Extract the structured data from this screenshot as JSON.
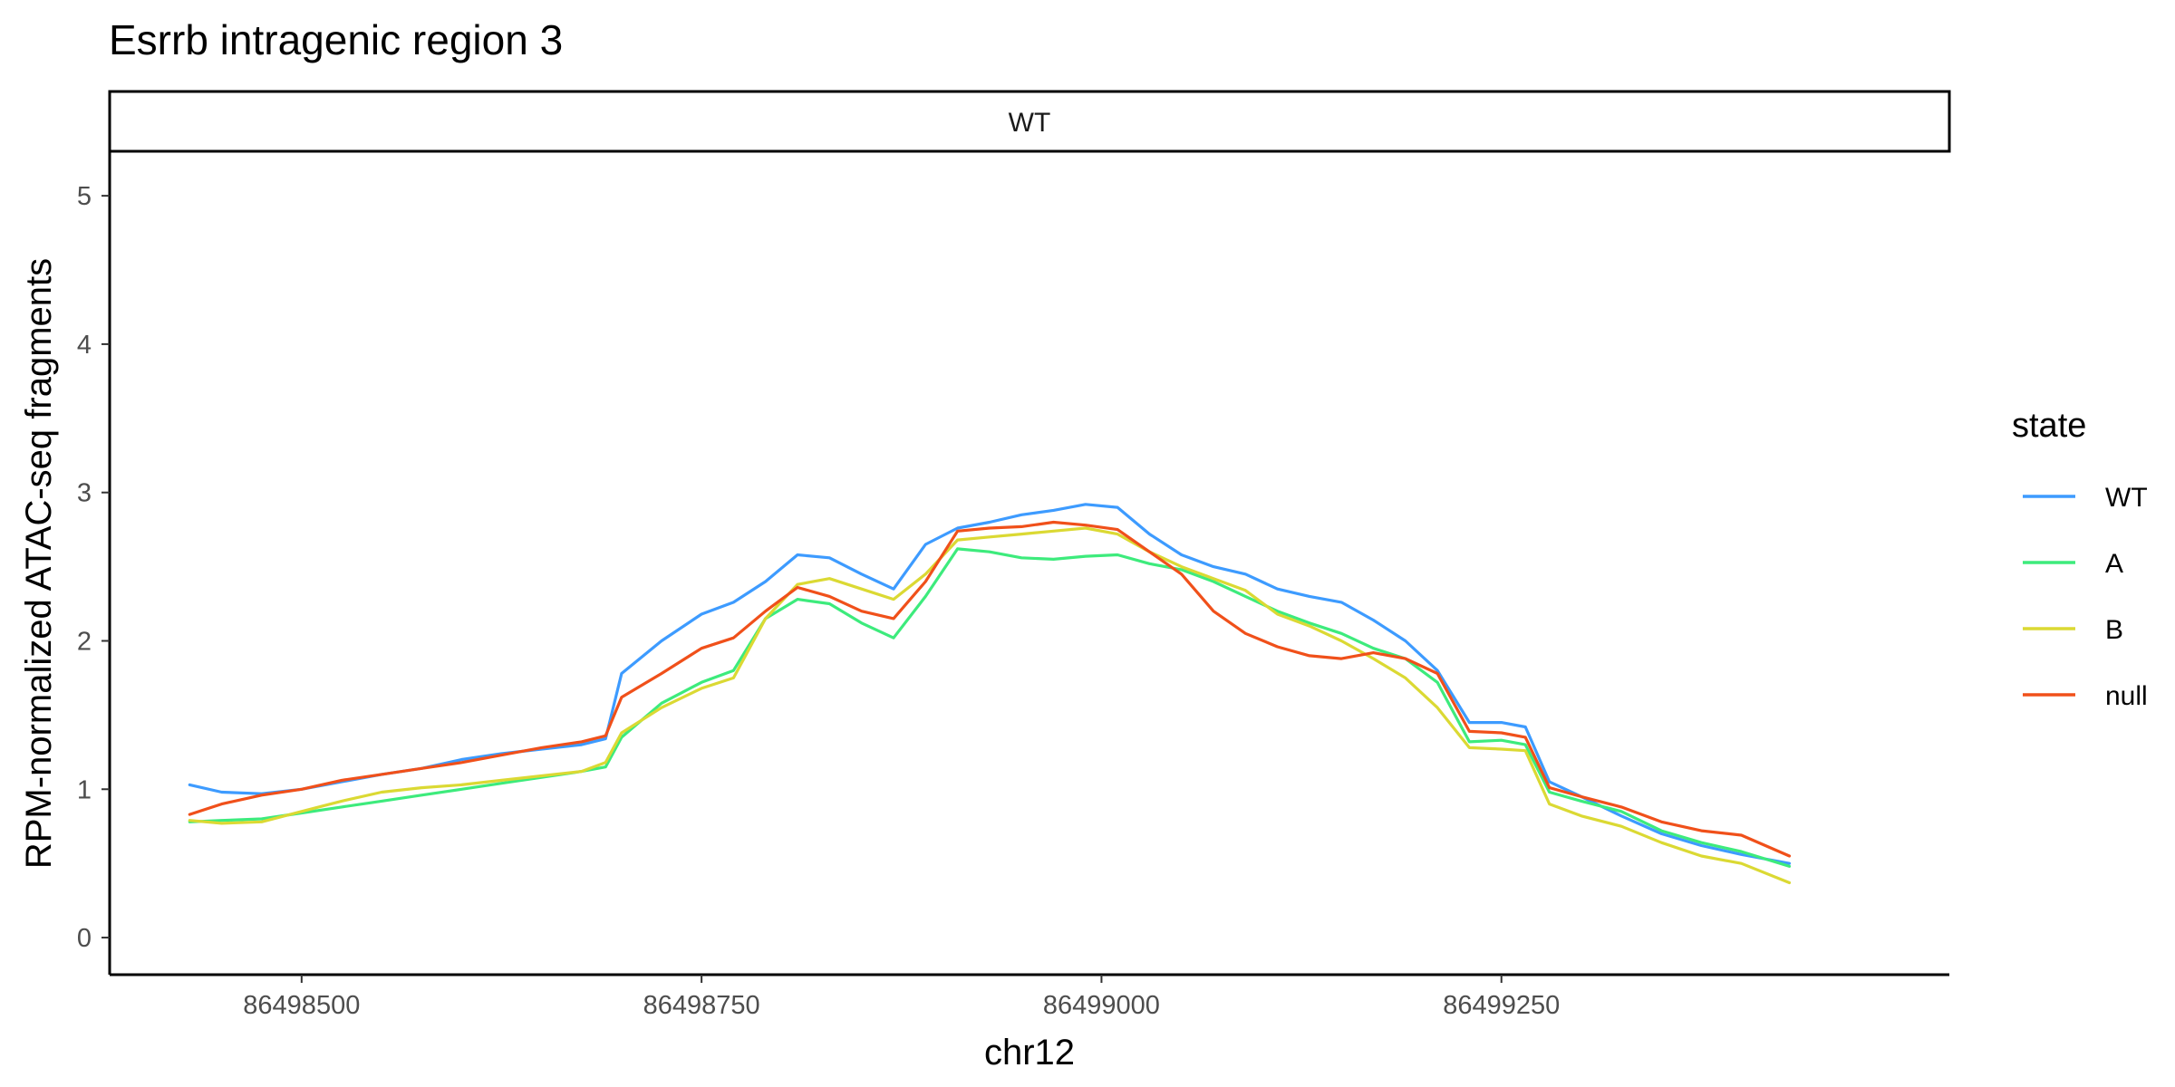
{
  "chart_data": {
    "type": "line",
    "title": "Esrrb intragenic region 3",
    "facet": "WT",
    "xlabel": "chr12",
    "ylabel": "RPM-normalized ATAC-seq fragments",
    "xlim": [
      86498380,
      86499530
    ],
    "ylim": [
      -0.25,
      5.3
    ],
    "xticks": [
      86498500,
      86498750,
      86499000,
      86499250
    ],
    "xtick_labels": [
      "86498500",
      "86498750",
      "86499000",
      "86499250"
    ],
    "yticks": [
      0,
      1,
      2,
      3,
      4,
      5
    ],
    "ytick_labels": [
      "0",
      "1",
      "2",
      "3",
      "4",
      "5"
    ],
    "grid": false,
    "legend": {
      "title": "state",
      "position": "right"
    },
    "x": [
      86498430,
      86498450,
      86498475,
      86498500,
      86498525,
      86498550,
      86498575,
      86498600,
      86498625,
      86498650,
      86498675,
      86498690,
      86498700,
      86498725,
      86498750,
      86498770,
      86498790,
      86498810,
      86498830,
      86498850,
      86498870,
      86498890,
      86498910,
      86498930,
      86498950,
      86498970,
      86498990,
      86499010,
      86499030,
      86499050,
      86499070,
      86499090,
      86499110,
      86499130,
      86499150,
      86499170,
      86499190,
      86499210,
      86499230,
      86499250,
      86499265,
      86499280,
      86499300,
      86499325,
      86499350,
      86499375,
      86499400,
      86499430
    ],
    "series": [
      {
        "name": "WT",
        "color": "#3d9bff",
        "values": [
          1.03,
          0.98,
          0.97,
          1.0,
          1.05,
          1.1,
          1.14,
          1.2,
          1.24,
          1.27,
          1.3,
          1.34,
          1.78,
          2.0,
          2.18,
          2.26,
          2.4,
          2.58,
          2.56,
          2.45,
          2.35,
          2.65,
          2.76,
          2.8,
          2.85,
          2.88,
          2.92,
          2.9,
          2.72,
          2.58,
          2.5,
          2.45,
          2.35,
          2.3,
          2.26,
          2.14,
          2.0,
          1.8,
          1.45,
          1.45,
          1.42,
          1.05,
          0.95,
          0.82,
          0.7,
          0.62,
          0.56,
          0.5
        ]
      },
      {
        "name": "A",
        "color": "#3deb7c",
        "values": [
          0.78,
          0.79,
          0.8,
          0.84,
          0.88,
          0.92,
          0.96,
          1.0,
          1.04,
          1.08,
          1.12,
          1.15,
          1.35,
          1.58,
          1.72,
          1.8,
          2.15,
          2.28,
          2.25,
          2.12,
          2.02,
          2.3,
          2.62,
          2.6,
          2.56,
          2.55,
          2.57,
          2.58,
          2.52,
          2.48,
          2.4,
          2.3,
          2.2,
          2.12,
          2.05,
          1.95,
          1.88,
          1.72,
          1.32,
          1.33,
          1.3,
          0.98,
          0.92,
          0.85,
          0.72,
          0.64,
          0.58,
          0.48
        ]
      },
      {
        "name": "B",
        "color": "#dbd933",
        "values": [
          0.79,
          0.77,
          0.78,
          0.85,
          0.92,
          0.98,
          1.01,
          1.03,
          1.06,
          1.09,
          1.12,
          1.18,
          1.38,
          1.55,
          1.68,
          1.75,
          2.15,
          2.38,
          2.42,
          2.35,
          2.28,
          2.45,
          2.68,
          2.7,
          2.72,
          2.74,
          2.76,
          2.72,
          2.6,
          2.5,
          2.42,
          2.34,
          2.18,
          2.1,
          2.0,
          1.88,
          1.75,
          1.55,
          1.28,
          1.27,
          1.26,
          0.9,
          0.82,
          0.75,
          0.64,
          0.55,
          0.5,
          0.37
        ]
      },
      {
        "name": "null",
        "color": "#f0501a",
        "values": [
          0.83,
          0.9,
          0.96,
          1.0,
          1.06,
          1.1,
          1.14,
          1.18,
          1.23,
          1.28,
          1.32,
          1.36,
          1.62,
          1.78,
          1.95,
          2.02,
          2.2,
          2.36,
          2.3,
          2.2,
          2.15,
          2.4,
          2.74,
          2.76,
          2.77,
          2.8,
          2.78,
          2.75,
          2.6,
          2.45,
          2.2,
          2.05,
          1.96,
          1.9,
          1.88,
          1.92,
          1.88,
          1.78,
          1.39,
          1.38,
          1.35,
          1.01,
          0.95,
          0.88,
          0.78,
          0.72,
          0.69,
          0.55
        ]
      }
    ]
  }
}
